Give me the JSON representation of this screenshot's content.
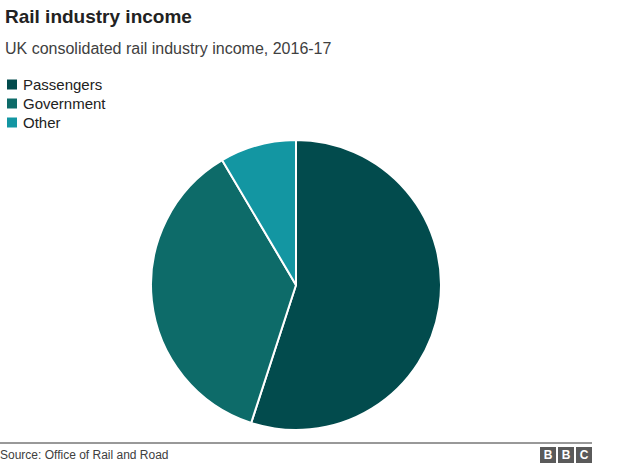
{
  "chart_data": {
    "type": "pie",
    "title": "Rail industry income",
    "subtitle": "UK consolidated rail industry income, 2016-17",
    "categories": [
      "Passengers",
      "Government",
      "Other"
    ],
    "values": [
      55,
      36.5,
      8.5
    ],
    "colors": [
      "#024b4d",
      "#0d6b69",
      "#1396a2"
    ],
    "legend": "top-left",
    "data_labels": false,
    "source": "Source: Office of Rail and Road",
    "logo": "BBC"
  }
}
